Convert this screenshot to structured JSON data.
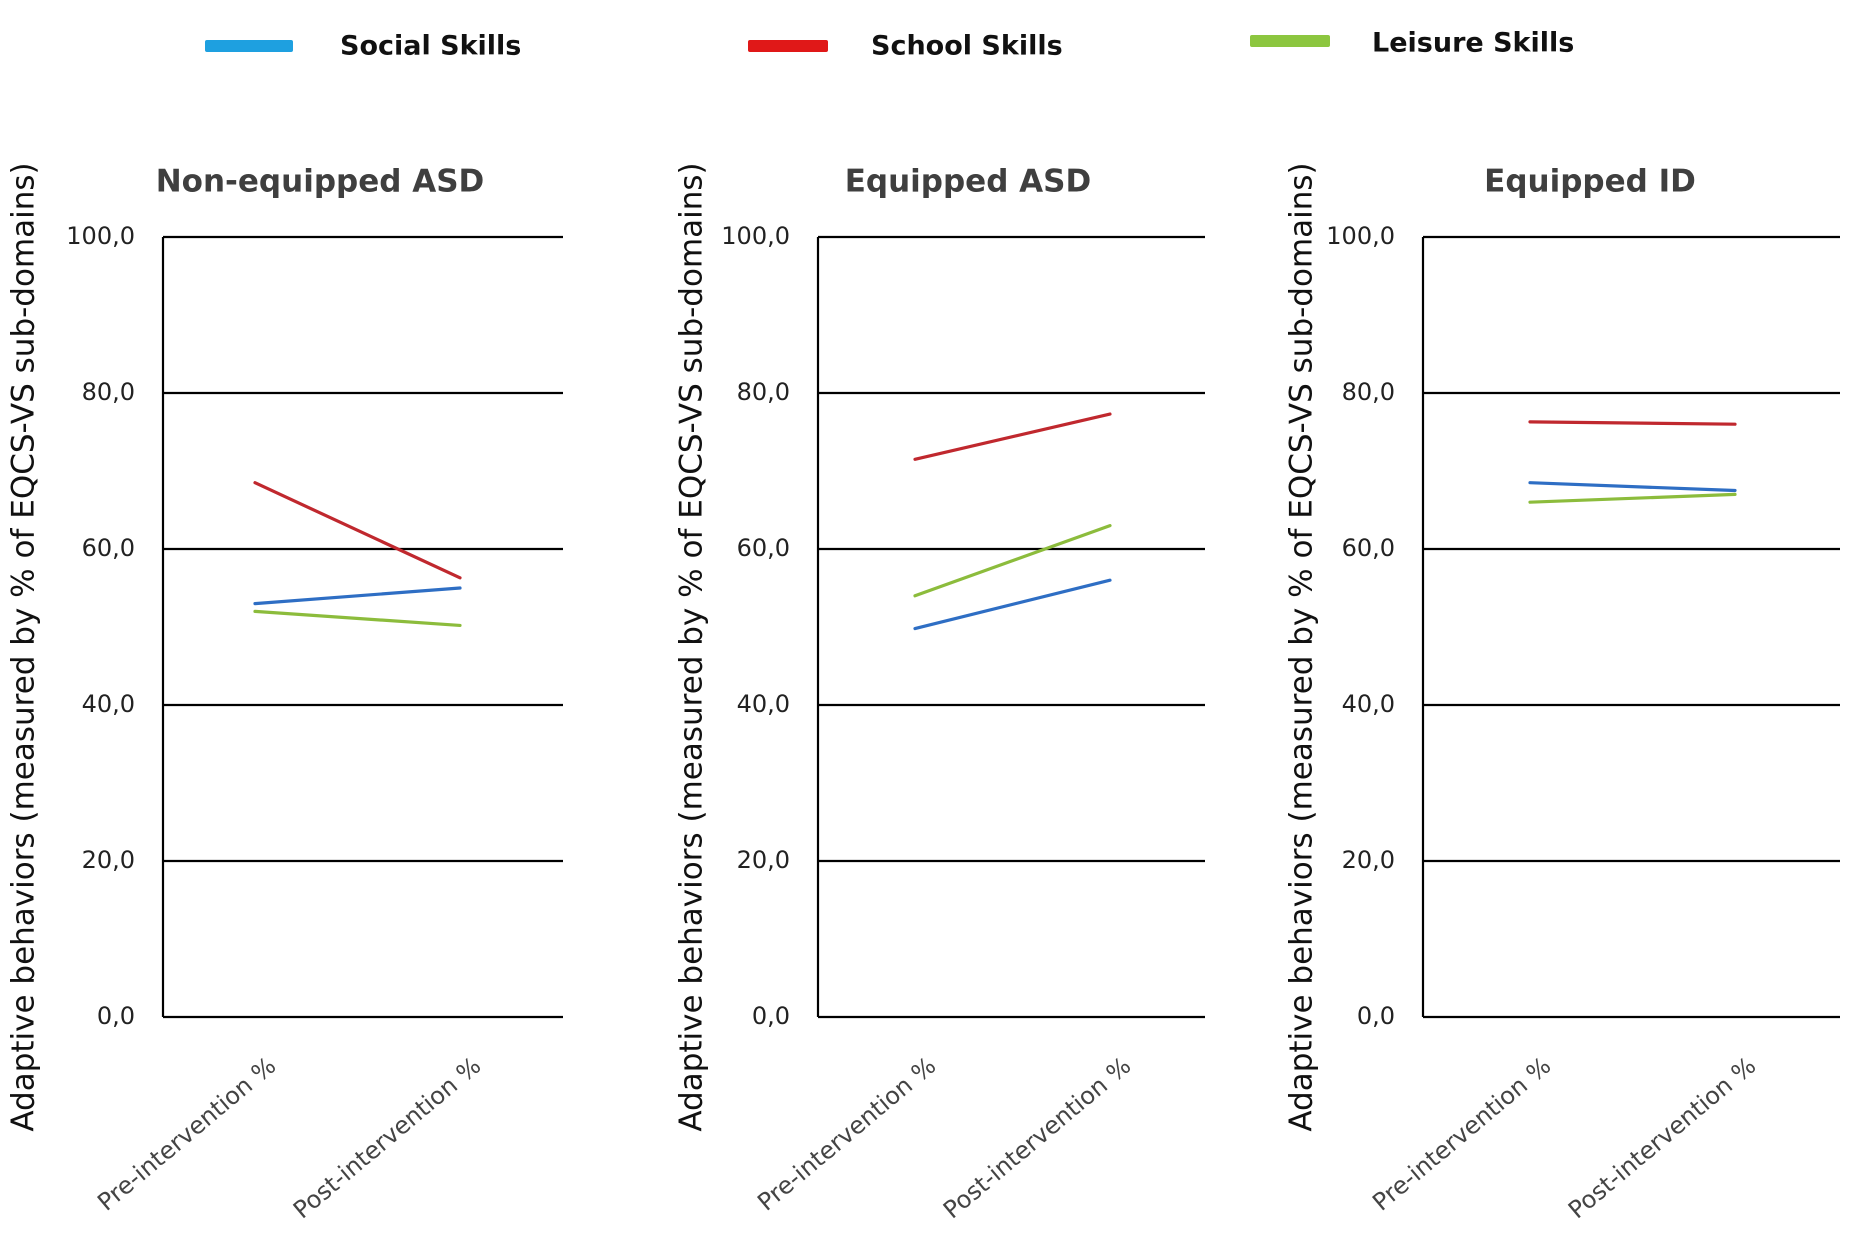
{
  "legend": [
    {
      "label": "Social Skills",
      "color": "#1ea0e0"
    },
    {
      "label": "School Skills",
      "color": "#e01818"
    },
    {
      "label": "Leisure Skills",
      "color": "#8cc63f"
    }
  ],
  "chart_data": [
    {
      "type": "line",
      "title": "Non-equipped ASD",
      "ylabel": "Adaptive behaviors (measured by % of EQCS-VS sub-domains)",
      "xlabel": "",
      "categories": [
        "Pre-intervention %",
        "Post-intervention %"
      ],
      "ylim": [
        0,
        100
      ],
      "yticks": [
        "0,0",
        "20,0",
        "40,0",
        "60,0",
        "80,0",
        "100,0"
      ],
      "grid": true,
      "series": [
        {
          "name": "Social Skills",
          "values": [
            53.0,
            55.0
          ],
          "color": "#2e6ec4"
        },
        {
          "name": "School Skills",
          "values": [
            68.5,
            56.3
          ],
          "color": "#c0282e"
        },
        {
          "name": "Leisure Skills",
          "values": [
            52.0,
            50.2
          ],
          "color": "#8cbc3c"
        }
      ]
    },
    {
      "type": "line",
      "title": "Equipped ASD",
      "ylabel": "Adaptive behaviors (measured by % of EQCS-VS sub-domains)",
      "xlabel": "",
      "categories": [
        "Pre-intervention %",
        "Post-intervention %"
      ],
      "ylim": [
        0,
        100
      ],
      "yticks": [
        "0,0",
        "20,0",
        "40,0",
        "60,0",
        "80,0",
        "100,0"
      ],
      "grid": true,
      "series": [
        {
          "name": "Social Skills",
          "values": [
            49.8,
            56.0
          ],
          "color": "#2e6ec4"
        },
        {
          "name": "School Skills",
          "values": [
            71.5,
            77.3
          ],
          "color": "#c0282e"
        },
        {
          "name": "Leisure Skills",
          "values": [
            54.0,
            63.0
          ],
          "color": "#8cbc3c"
        }
      ]
    },
    {
      "type": "line",
      "title": "Equipped ID",
      "ylabel": "Adaptive behaviors (measured by % of EQCS-VS sub-domains)",
      "xlabel": "",
      "categories": [
        "Pre-intervention %",
        "Post-intervention %"
      ],
      "ylim": [
        0,
        100
      ],
      "yticks": [
        "0,0",
        "20,0",
        "40,0",
        "60,0",
        "80,0",
        "100,0"
      ],
      "grid": true,
      "series": [
        {
          "name": "Social Skills",
          "values": [
            68.5,
            67.5
          ],
          "color": "#2e6ec4"
        },
        {
          "name": "School Skills",
          "values": [
            76.3,
            76.0
          ],
          "color": "#c0282e"
        },
        {
          "name": "Leisure Skills",
          "values": [
            66.0,
            67.0
          ],
          "color": "#8cbc3c"
        }
      ]
    }
  ]
}
